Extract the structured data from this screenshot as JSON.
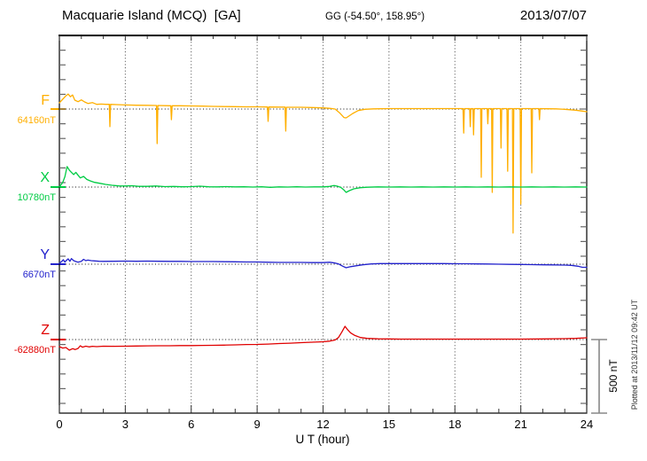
{
  "header": {
    "station": "Macquarie Island (MCQ)  [GA]",
    "coordinates": "GG (-54.50°, 158.95°)",
    "date": "2013/07/07"
  },
  "footer": {
    "plotted_at": "Plotted at 2013/11/12 09:42 UT"
  },
  "scale_bar": {
    "label": "500 nT",
    "span_nT": 500
  },
  "chart_data": {
    "type": "line",
    "title": "Macquarie Island (MCQ) [GA] magnetogram, 2013/07/07",
    "xlabel": "U T (hour)",
    "x_range": [
      0,
      24
    ],
    "x_tick_labels": [
      "0",
      "3",
      "6",
      "9",
      "12",
      "15",
      "18",
      "21",
      "24"
    ],
    "x_ticks_hours": [
      0,
      3,
      6,
      9,
      12,
      15,
      18,
      21,
      24
    ],
    "gridline_hours": [
      3,
      6,
      9,
      12,
      15,
      18,
      21
    ],
    "grid": "dotted-vertical",
    "legend_position": "left-of-traces",
    "y_unit": "nT",
    "scale_nT_per_division": 100,
    "series": [
      {
        "id": "F",
        "label": "F",
        "baseline_label": "64160nT",
        "baseline_nT": 64160,
        "color": "#FFAF00",
        "points_delta_nT": [
          [
            0,
            42
          ],
          [
            0.15,
            66
          ],
          [
            0.3,
            90
          ],
          [
            0.4,
            102
          ],
          [
            0.5,
            84
          ],
          [
            0.6,
            96
          ],
          [
            0.7,
            60
          ],
          [
            0.85,
            50
          ],
          [
            1.0,
            62
          ],
          [
            1.15,
            48
          ],
          [
            1.3,
            38
          ],
          [
            1.5,
            44
          ],
          [
            1.7,
            32
          ],
          [
            1.9,
            34
          ],
          [
            2.1,
            32
          ],
          [
            2.27,
            32
          ],
          [
            2.3,
            -120
          ],
          [
            2.33,
            32
          ],
          [
            2.6,
            30
          ],
          [
            3.0,
            28
          ],
          [
            3.5,
            26
          ],
          [
            4.0,
            25
          ],
          [
            4.42,
            24
          ],
          [
            4.45,
            -235
          ],
          [
            4.48,
            24
          ],
          [
            4.8,
            23
          ],
          [
            5.07,
            22
          ],
          [
            5.1,
            -72
          ],
          [
            5.13,
            22
          ],
          [
            5.5,
            22
          ],
          [
            6.0,
            21
          ],
          [
            6.5,
            20
          ],
          [
            7.0,
            18
          ],
          [
            7.5,
            17
          ],
          [
            8.0,
            16
          ],
          [
            8.5,
            15
          ],
          [
            9.0,
            15
          ],
          [
            9.47,
            14
          ],
          [
            9.5,
            -84
          ],
          [
            9.53,
            14
          ],
          [
            10.0,
            13
          ],
          [
            10.27,
            13
          ],
          [
            10.3,
            -150
          ],
          [
            10.33,
            12
          ],
          [
            10.7,
            12
          ],
          [
            11.0,
            12
          ],
          [
            11.5,
            10
          ],
          [
            12.0,
            8
          ],
          [
            12.3,
            5
          ],
          [
            12.55,
            0
          ],
          [
            12.75,
            -25
          ],
          [
            12.95,
            -58
          ],
          [
            13.05,
            -60
          ],
          [
            13.2,
            -45
          ],
          [
            13.35,
            -30
          ],
          [
            13.6,
            -10
          ],
          [
            13.9,
            -2
          ],
          [
            14.3,
            1
          ],
          [
            15,
            3
          ],
          [
            16,
            3
          ],
          [
            17,
            3
          ],
          [
            18,
            3
          ],
          [
            18.37,
            3
          ],
          [
            18.4,
            -163
          ],
          [
            18.43,
            3
          ],
          [
            18.67,
            3
          ],
          [
            18.7,
            -120
          ],
          [
            18.73,
            3
          ],
          [
            18.82,
            3
          ],
          [
            18.85,
            -175
          ],
          [
            18.88,
            3
          ],
          [
            19.17,
            3
          ],
          [
            19.2,
            -464
          ],
          [
            19.23,
            3
          ],
          [
            19.47,
            3
          ],
          [
            19.5,
            -100
          ],
          [
            19.53,
            3
          ],
          [
            19.67,
            3
          ],
          [
            19.7,
            -566
          ],
          [
            19.73,
            3
          ],
          [
            20.07,
            3
          ],
          [
            20.1,
            -265
          ],
          [
            20.13,
            3
          ],
          [
            20.37,
            3
          ],
          [
            20.4,
            -422
          ],
          [
            20.43,
            3
          ],
          [
            20.62,
            3
          ],
          [
            20.65,
            -843
          ],
          [
            20.68,
            3
          ],
          [
            20.97,
            3
          ],
          [
            21.0,
            -645
          ],
          [
            21.03,
            3
          ],
          [
            21.47,
            3
          ],
          [
            21.5,
            -434
          ],
          [
            21.53,
            3
          ],
          [
            21.82,
            3
          ],
          [
            21.85,
            -72
          ],
          [
            21.88,
            3
          ],
          [
            22.2,
            2
          ],
          [
            22.6,
            1
          ],
          [
            23.0,
            -2
          ],
          [
            23.5,
            -8
          ],
          [
            23.8,
            -14
          ],
          [
            24,
            -18
          ]
        ]
      },
      {
        "id": "X",
        "label": "X",
        "baseline_label": "10780nT",
        "baseline_nT": 10780,
        "color": "#00CC44",
        "points_delta_nT": [
          [
            0,
            2
          ],
          [
            0.15,
            30
          ],
          [
            0.25,
            70
          ],
          [
            0.35,
            139
          ],
          [
            0.45,
            115
          ],
          [
            0.55,
            100
          ],
          [
            0.65,
            85
          ],
          [
            0.75,
            100
          ],
          [
            0.85,
            80
          ],
          [
            0.95,
            62
          ],
          [
            1.1,
            72
          ],
          [
            1.25,
            52
          ],
          [
            1.4,
            42
          ],
          [
            1.6,
            32
          ],
          [
            1.85,
            25
          ],
          [
            2.1,
            18
          ],
          [
            2.4,
            12
          ],
          [
            2.7,
            8
          ],
          [
            3.0,
            7
          ],
          [
            3.3,
            9
          ],
          [
            3.6,
            5
          ],
          [
            4.0,
            5
          ],
          [
            4.4,
            7
          ],
          [
            4.8,
            3
          ],
          [
            5.2,
            4
          ],
          [
            5.6,
            2
          ],
          [
            6.0,
            3
          ],
          [
            6.4,
            6
          ],
          [
            6.8,
            2
          ],
          [
            7.2,
            1
          ],
          [
            7.6,
            3
          ],
          [
            8.0,
            1
          ],
          [
            8.4,
            2
          ],
          [
            8.8,
            0
          ],
          [
            9.2,
            2
          ],
          [
            9.6,
            -2
          ],
          [
            10.0,
            1
          ],
          [
            10.4,
            0
          ],
          [
            10.8,
            2
          ],
          [
            11.2,
            0
          ],
          [
            11.6,
            1
          ],
          [
            12.0,
            1
          ],
          [
            12.3,
            4
          ],
          [
            12.5,
            10
          ],
          [
            12.65,
            6
          ],
          [
            12.8,
            -2
          ],
          [
            12.95,
            -20
          ],
          [
            13.05,
            -36
          ],
          [
            13.2,
            -24
          ],
          [
            13.4,
            -12
          ],
          [
            13.7,
            -4
          ],
          [
            14.0,
            -1
          ],
          [
            14.5,
            1
          ],
          [
            15,
            0
          ],
          [
            15.5,
            1
          ],
          [
            16,
            0
          ],
          [
            16.5,
            1
          ],
          [
            17,
            0
          ],
          [
            17.5,
            1
          ],
          [
            18,
            0
          ],
          [
            18.5,
            1
          ],
          [
            19,
            0
          ],
          [
            19.5,
            1
          ],
          [
            20,
            0
          ],
          [
            20.5,
            1
          ],
          [
            21,
            0
          ],
          [
            21.5,
            1
          ],
          [
            22,
            0
          ],
          [
            22.5,
            1
          ],
          [
            23,
            0
          ],
          [
            23.5,
            1
          ],
          [
            24,
            0
          ]
        ]
      },
      {
        "id": "Y",
        "label": "Y",
        "baseline_label": "6670nT",
        "baseline_nT": 6670,
        "color": "#2222CC",
        "points_delta_nT": [
          [
            0,
            6
          ],
          [
            0.1,
            18
          ],
          [
            0.18,
            30
          ],
          [
            0.25,
            14
          ],
          [
            0.32,
            26
          ],
          [
            0.4,
            36
          ],
          [
            0.48,
            20
          ],
          [
            0.55,
            38
          ],
          [
            0.65,
            24
          ],
          [
            0.75,
            18
          ],
          [
            0.85,
            14
          ],
          [
            1.0,
            20
          ],
          [
            1.1,
            33
          ],
          [
            1.2,
            24
          ],
          [
            1.3,
            28
          ],
          [
            1.45,
            24
          ],
          [
            1.6,
            22
          ],
          [
            1.8,
            20
          ],
          [
            2.0,
            19
          ],
          [
            2.5,
            20
          ],
          [
            3.0,
            21
          ],
          [
            3.5,
            20
          ],
          [
            4.0,
            21
          ],
          [
            4.5,
            20
          ],
          [
            5.0,
            19
          ],
          [
            5.5,
            19
          ],
          [
            6.0,
            18
          ],
          [
            6.5,
            18
          ],
          [
            7.0,
            18
          ],
          [
            7.5,
            17
          ],
          [
            8.0,
            16
          ],
          [
            8.5,
            15
          ],
          [
            9.0,
            15
          ],
          [
            9.5,
            13
          ],
          [
            10.0,
            12
          ],
          [
            10.5,
            12
          ],
          [
            11.0,
            12
          ],
          [
            11.5,
            11
          ],
          [
            12.0,
            11
          ],
          [
            12.3,
            13
          ],
          [
            12.55,
            8
          ],
          [
            12.7,
            2
          ],
          [
            12.9,
            -14
          ],
          [
            13.05,
            -24
          ],
          [
            13.25,
            -17
          ],
          [
            13.5,
            -11
          ],
          [
            13.8,
            -4
          ],
          [
            14.2,
            2
          ],
          [
            14.6,
            4
          ],
          [
            15,
            4
          ],
          [
            15.5,
            4
          ],
          [
            16,
            4
          ],
          [
            16.5,
            4
          ],
          [
            17,
            4
          ],
          [
            17.5,
            4
          ],
          [
            18,
            3
          ],
          [
            18.5,
            3
          ],
          [
            19,
            2
          ],
          [
            19.5,
            1
          ],
          [
            20,
            0
          ],
          [
            20.5,
            -1
          ],
          [
            21,
            -2
          ],
          [
            21.5,
            -3
          ],
          [
            22,
            -4
          ],
          [
            22.5,
            -5
          ],
          [
            23,
            -6
          ],
          [
            23.3,
            -8
          ],
          [
            23.6,
            -14
          ],
          [
            23.8,
            -21
          ],
          [
            24,
            -21
          ]
        ]
      },
      {
        "id": "Z",
        "label": "Z",
        "baseline_label": "-62880nT",
        "baseline_nT": -62880,
        "color": "#E00000",
        "points_delta_nT": [
          [
            0,
            -48
          ],
          [
            0.15,
            -58
          ],
          [
            0.3,
            -54
          ],
          [
            0.45,
            -72
          ],
          [
            0.6,
            -62
          ],
          [
            0.72,
            -68
          ],
          [
            0.85,
            -60
          ],
          [
            0.95,
            -42
          ],
          [
            1.05,
            -52
          ],
          [
            1.2,
            -45
          ],
          [
            1.35,
            -50
          ],
          [
            1.5,
            -46
          ],
          [
            1.7,
            -48
          ],
          [
            2.0,
            -45
          ],
          [
            2.5,
            -46
          ],
          [
            3.0,
            -45
          ],
          [
            3.5,
            -44
          ],
          [
            4.0,
            -43
          ],
          [
            4.5,
            -42
          ],
          [
            5.0,
            -42
          ],
          [
            5.5,
            -41
          ],
          [
            6.0,
            -41
          ],
          [
            6.5,
            -40
          ],
          [
            7.0,
            -39
          ],
          [
            7.5,
            -38
          ],
          [
            8.0,
            -36
          ],
          [
            8.5,
            -34
          ],
          [
            9.0,
            -33
          ],
          [
            9.5,
            -31
          ],
          [
            10.0,
            -27
          ],
          [
            10.5,
            -25
          ],
          [
            11.0,
            -21
          ],
          [
            11.5,
            -18
          ],
          [
            12.0,
            -15
          ],
          [
            12.3,
            -11
          ],
          [
            12.55,
            -3
          ],
          [
            12.7,
            14
          ],
          [
            12.85,
            50
          ],
          [
            13.0,
            90
          ],
          [
            13.1,
            70
          ],
          [
            13.25,
            46
          ],
          [
            13.45,
            28
          ],
          [
            13.7,
            14
          ],
          [
            14.0,
            8
          ],
          [
            14.5,
            5
          ],
          [
            15,
            4
          ],
          [
            15.5,
            3
          ],
          [
            16,
            3
          ],
          [
            17,
            3
          ],
          [
            18,
            3
          ],
          [
            19,
            3
          ],
          [
            20,
            3
          ],
          [
            21,
            3
          ],
          [
            22,
            4
          ],
          [
            23,
            6
          ],
          [
            23.5,
            8
          ],
          [
            24,
            12
          ]
        ]
      }
    ]
  }
}
